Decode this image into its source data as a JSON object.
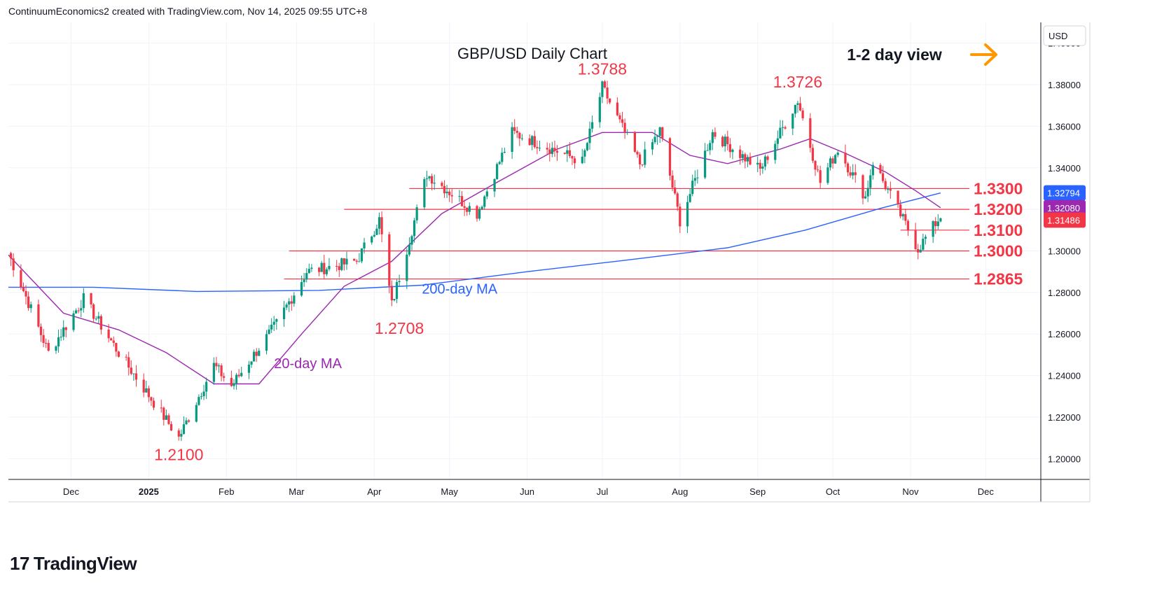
{
  "header": {
    "attribution": "ContinuumEconomics2 created with TradingView.com, Nov 14, 2025 09:55 UTC+8"
  },
  "footer": {
    "logo_text": "TradingView",
    "logo_mark": "17"
  },
  "colors": {
    "up": "#089981",
    "down": "#f23645",
    "level": "#f23645",
    "ma20": "#9c27b0",
    "ma200": "#2962ff",
    "grid": "#f0f3fa",
    "text": "#131722",
    "arrow": "#ff9800"
  },
  "chart_data": {
    "type": "candlestick",
    "title": "GBP/USD Daily Chart",
    "subtitle": "1-2 day view",
    "currency_label": "USD",
    "y_axis": {
      "range": [
        1.19,
        1.41
      ],
      "ticks": [
        "1.20000",
        "1.22000",
        "1.24000",
        "1.26000",
        "1.28000",
        "1.30000",
        "1.32000",
        "1.34000",
        "1.36000",
        "1.38000",
        "1.40000"
      ]
    },
    "x_axis": {
      "ticks": [
        {
          "label": "Dec",
          "date": "2024-12-01"
        },
        {
          "label": "2025",
          "date": "2025-01-01"
        },
        {
          "label": "Feb",
          "date": "2025-02-01"
        },
        {
          "label": "Mar",
          "date": "2025-03-01"
        },
        {
          "label": "Apr",
          "date": "2025-04-01"
        },
        {
          "label": "May",
          "date": "2025-05-01"
        },
        {
          "label": "Jun",
          "date": "2025-06-01"
        },
        {
          "label": "Jul",
          "date": "2025-07-01"
        },
        {
          "label": "Aug",
          "date": "2025-08-01"
        },
        {
          "label": "Sep",
          "date": "2025-09-01"
        },
        {
          "label": "Oct",
          "date": "2025-10-01"
        },
        {
          "label": "Nov",
          "date": "2025-11-01"
        },
        {
          "label": "Dec",
          "date": "2025-12-01"
        }
      ]
    },
    "horizontal_levels": [
      {
        "label": "1.3300",
        "value": 1.33,
        "from": "2025-04-15"
      },
      {
        "label": "1.3200",
        "value": 1.32,
        "from": "2025-03-20"
      },
      {
        "label": "1.3100",
        "value": 1.31,
        "from": "2025-10-28"
      },
      {
        "label": "1.3000",
        "value": 1.3,
        "from": "2025-02-26"
      },
      {
        "label": "1.2865",
        "value": 1.2865,
        "from": "2025-02-24"
      }
    ],
    "price_badges": [
      {
        "label": "1.32794",
        "value": 1.32794,
        "color": "#2962ff"
      },
      {
        "label": "1.32080",
        "value": 1.3208,
        "color": "#9c27b0"
      },
      {
        "label": "1.31486",
        "value": 1.31486,
        "color": "#f23645"
      }
    ],
    "annotations": [
      {
        "text": "1.3788",
        "date": "2025-07-01",
        "value": 1.3788
      },
      {
        "text": "1.3726",
        "date": "2025-09-17",
        "value": 1.3726
      },
      {
        "text": "1.2708",
        "date": "2025-04-11",
        "value": 1.2708
      },
      {
        "text": "1.2100",
        "date": "2025-01-13",
        "value": 1.21
      }
    ],
    "ma_labels": [
      {
        "text": "200-day MA",
        "date": "2025-04-20",
        "value": 1.2795,
        "color": "#2962ff"
      },
      {
        "text": "20-day MA",
        "date": "2025-02-20",
        "value": 1.2435,
        "color": "#9c27b0"
      }
    ],
    "price_path": [
      {
        "date": "2024-11-06",
        "value": 1.299
      },
      {
        "date": "2024-11-22",
        "value": 1.251
      },
      {
        "date": "2024-12-06",
        "value": 1.277
      },
      {
        "date": "2024-12-20",
        "value": 1.251
      },
      {
        "date": "2025-01-13",
        "value": 1.21
      },
      {
        "date": "2025-01-27",
        "value": 1.245
      },
      {
        "date": "2025-02-03",
        "value": 1.235
      },
      {
        "date": "2025-02-21",
        "value": 1.265
      },
      {
        "date": "2025-03-05",
        "value": 1.29
      },
      {
        "date": "2025-03-25",
        "value": 1.295
      },
      {
        "date": "2025-04-03",
        "value": 1.315
      },
      {
        "date": "2025-04-08",
        "value": 1.274
      },
      {
        "date": "2025-04-22",
        "value": 1.337
      },
      {
        "date": "2025-05-12",
        "value": 1.318
      },
      {
        "date": "2025-05-26",
        "value": 1.357
      },
      {
        "date": "2025-06-23",
        "value": 1.343
      },
      {
        "date": "2025-07-01",
        "value": 1.3788
      },
      {
        "date": "2025-07-16",
        "value": 1.342
      },
      {
        "date": "2025-07-24",
        "value": 1.358
      },
      {
        "date": "2025-08-01",
        "value": 1.3145
      },
      {
        "date": "2025-08-14",
        "value": 1.357
      },
      {
        "date": "2025-09-02",
        "value": 1.339
      },
      {
        "date": "2025-09-17",
        "value": 1.3726
      },
      {
        "date": "2025-09-26",
        "value": 1.333
      },
      {
        "date": "2025-10-03",
        "value": 1.349
      },
      {
        "date": "2025-10-14",
        "value": 1.326
      },
      {
        "date": "2025-10-17",
        "value": 1.343
      },
      {
        "date": "2025-11-04",
        "value": 1.301
      },
      {
        "date": "2025-11-13",
        "value": 1.3168
      }
    ],
    "ma20_path": [
      {
        "date": "2024-11-06",
        "value": 1.298
      },
      {
        "date": "2024-11-28",
        "value": 1.27
      },
      {
        "date": "2024-12-20",
        "value": 1.262
      },
      {
        "date": "2025-01-08",
        "value": 1.251
      },
      {
        "date": "2025-01-27",
        "value": 1.236
      },
      {
        "date": "2025-02-14",
        "value": 1.236
      },
      {
        "date": "2025-03-03",
        "value": 1.26
      },
      {
        "date": "2025-03-20",
        "value": 1.283
      },
      {
        "date": "2025-04-08",
        "value": 1.295
      },
      {
        "date": "2025-04-28",
        "value": 1.318
      },
      {
        "date": "2025-05-20",
        "value": 1.333
      },
      {
        "date": "2025-06-13",
        "value": 1.349
      },
      {
        "date": "2025-07-01",
        "value": 1.357
      },
      {
        "date": "2025-07-21",
        "value": 1.357
      },
      {
        "date": "2025-08-05",
        "value": 1.346
      },
      {
        "date": "2025-08-20",
        "value": 1.342
      },
      {
        "date": "2025-09-10",
        "value": 1.349
      },
      {
        "date": "2025-09-22",
        "value": 1.354
      },
      {
        "date": "2025-10-06",
        "value": 1.347
      },
      {
        "date": "2025-10-22",
        "value": 1.338
      },
      {
        "date": "2025-11-03",
        "value": 1.329
      },
      {
        "date": "2025-11-13",
        "value": 1.3208
      }
    ],
    "ma200_path": [
      {
        "date": "2024-11-06",
        "value": 1.2825
      },
      {
        "date": "2024-12-10",
        "value": 1.2825
      },
      {
        "date": "2025-01-20",
        "value": 1.2805
      },
      {
        "date": "2025-03-10",
        "value": 1.281
      },
      {
        "date": "2025-04-20",
        "value": 1.2835
      },
      {
        "date": "2025-06-01",
        "value": 1.29
      },
      {
        "date": "2025-07-10",
        "value": 1.2955
      },
      {
        "date": "2025-08-20",
        "value": 1.3015
      },
      {
        "date": "2025-09-20",
        "value": 1.31
      },
      {
        "date": "2025-10-20",
        "value": 1.3205
      },
      {
        "date": "2025-11-13",
        "value": 1.3279
      }
    ]
  }
}
